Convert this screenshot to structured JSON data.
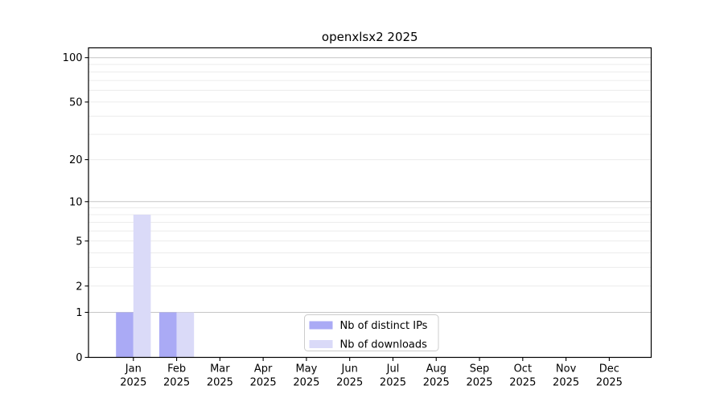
{
  "chart_data": {
    "type": "bar",
    "title": "openxlsx2 2025",
    "xlabel": "",
    "ylabel": "",
    "year_label": "2025",
    "categories": [
      "Jan",
      "Feb",
      "Mar",
      "Apr",
      "May",
      "Jun",
      "Jul",
      "Aug",
      "Sep",
      "Oct",
      "Nov",
      "Dec"
    ],
    "series": [
      {
        "name": "Nb of distinct IPs",
        "color": "#aaaaf5",
        "values": [
          1,
          1,
          0,
          0,
          0,
          0,
          0,
          0,
          0,
          0,
          0,
          0
        ]
      },
      {
        "name": "Nb of downloads",
        "color": "#dadaf8",
        "values": [
          8,
          1,
          0,
          0,
          0,
          0,
          0,
          0,
          0,
          0,
          0,
          0
        ]
      }
    ],
    "y_scale": "log10(1+value)",
    "y_ticks": [
      0,
      1,
      2,
      5,
      10,
      20,
      50,
      100
    ],
    "ylim": [
      0,
      115
    ],
    "grid": "horizontal",
    "major_gridlines": [
      1,
      10,
      100
    ],
    "minor_gridlines": [
      2,
      3,
      4,
      5,
      6,
      7,
      8,
      9,
      20,
      30,
      40,
      50,
      60,
      70,
      80,
      90
    ],
    "legend_position": "bottom-center-inside",
    "colors": {
      "axis": "#000000",
      "text": "#000000",
      "major_grid": "#c6c6c6",
      "minor_grid": "#ececec",
      "legend_border": "#cccccc",
      "legend_bg": "#ffffff",
      "background": "#ffffff"
    }
  }
}
